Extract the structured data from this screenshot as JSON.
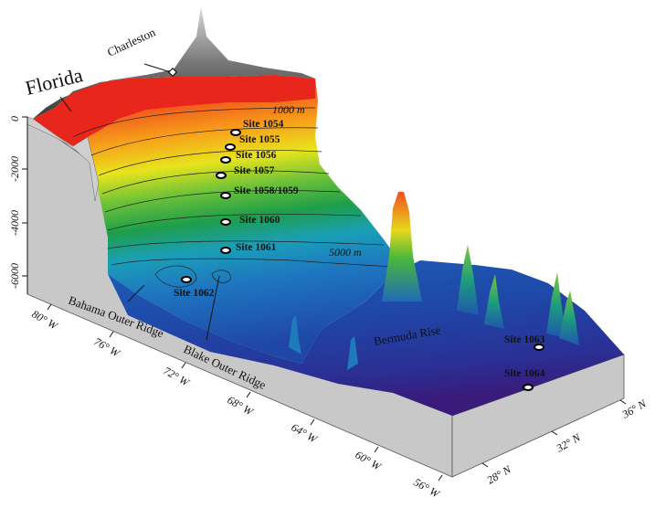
{
  "labels": {
    "florida": "Florida",
    "charleston": "Charleston",
    "bahama_outer_ridge": "Bahama Outer Ridge",
    "blake_outer_ridge": "Blake Outer Ridge",
    "bermuda_rise": "Bermuda Rise",
    "contour_1000": "1000 m",
    "contour_5000": "5000 m"
  },
  "sites": [
    {
      "label": "Site 1054"
    },
    {
      "label": "Site 1055"
    },
    {
      "label": "Site 1056"
    },
    {
      "label": "Site 1057"
    },
    {
      "label": "Site 1058/1059"
    },
    {
      "label": "Site 1060"
    },
    {
      "label": "Site 1061"
    },
    {
      "label": "Site 1062"
    },
    {
      "label": "Site 1063"
    },
    {
      "label": "Site 1064"
    }
  ],
  "depth_axis": {
    "ticks": [
      "0",
      "-2000",
      "-4000",
      "-6000"
    ]
  },
  "longitude_axis": {
    "ticks": [
      "80° W",
      "76° W",
      "72° W",
      "68° W",
      "64° W",
      "60° W",
      "56° W"
    ]
  },
  "latitude_axis": {
    "ticks": [
      "28° N",
      "32° N",
      "36° N"
    ]
  },
  "colors": {
    "land": "#555555",
    "shelf": "#e8261b",
    "upper_slope": "#f7a21a",
    "mid_slope": "#3db33a",
    "lower_slope": "#1a90c8",
    "abyssal": "#1f47a8",
    "deep": "#3a1a7a",
    "wall": "#c8c8c8"
  }
}
